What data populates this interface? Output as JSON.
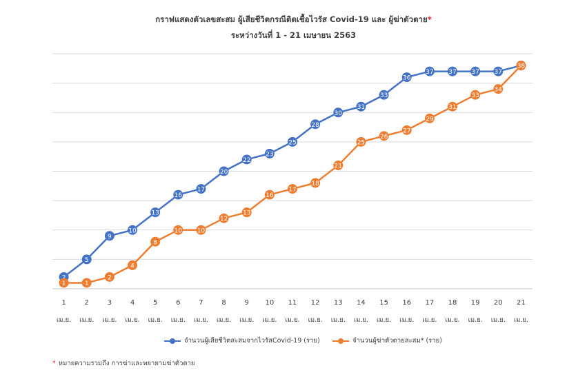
{
  "chart_data": {
    "type": "line",
    "title": "กราฟแสดงตัวเลขสะสม ผู้เสียชีวิตกรณีติดเชื้อไวรัส Covid-19 และ ผู้ฆ่าตัวตาย",
    "title_marker": "*",
    "subtitle": "ระหว่างวันที่ 1 - 21 เมษายน 2563",
    "categories": [
      "1",
      "2",
      "3",
      "4",
      "5",
      "6",
      "7",
      "8",
      "9",
      "10",
      "11",
      "12",
      "13",
      "14",
      "15",
      "16",
      "17",
      "18",
      "19",
      "20",
      "21"
    ],
    "category_sublabel": "เม.ย.",
    "ylim": [
      0,
      40
    ],
    "grid": true,
    "legend_position": "bottom",
    "series": [
      {
        "name": "จำนวนผู้เสียชีวิตสะสมจากไวรัสCovid-19 (ราย)",
        "color": "#4472C4",
        "values": [
          2,
          5,
          9,
          10,
          13,
          16,
          17,
          20,
          22,
          23,
          25,
          28,
          30,
          31,
          33,
          36,
          37,
          37,
          37,
          37,
          38
        ]
      },
      {
        "name": "จำนวนผู้ฆ่าตัวตายสะสม* (ราย)",
        "color": "#ED7D31",
        "values": [
          1,
          1,
          2,
          4,
          8,
          10,
          10,
          12,
          13,
          16,
          17,
          18,
          21,
          25,
          26,
          27,
          29,
          31,
          33,
          34,
          38
        ]
      }
    ],
    "footnote_marker": "*",
    "footnote": "หมายความรวมถึง การฆ่าและพยายามฆ่าตัวตาย"
  }
}
